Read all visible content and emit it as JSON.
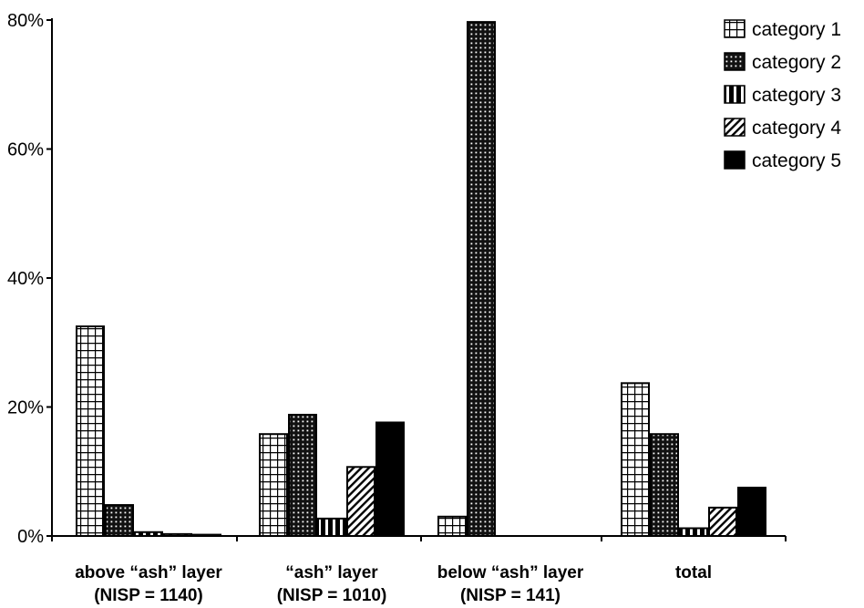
{
  "chart_data": {
    "type": "bar",
    "categories": [
      {
        "line1": "above “ash” layer",
        "line2": "(NISP = 1140)"
      },
      {
        "line1": "“ash” layer",
        "line2": "(NISP = 1010)"
      },
      {
        "line1": "below “ash” layer",
        "line2": "(NISP = 141)"
      },
      {
        "line1": "total",
        "line2": ""
      }
    ],
    "series": [
      {
        "name": "category 1",
        "pattern": "grid",
        "values": [
          32.5,
          15.8,
          3.0,
          23.7
        ]
      },
      {
        "name": "category 2",
        "pattern": "dots",
        "values": [
          4.8,
          18.8,
          79.7,
          15.8
        ]
      },
      {
        "name": "category 3",
        "pattern": "vstripes",
        "values": [
          0.6,
          2.7,
          0.0,
          1.2
        ]
      },
      {
        "name": "category 4",
        "pattern": "diagonal",
        "values": [
          0.3,
          10.7,
          0.0,
          4.4
        ]
      },
      {
        "name": "category 5",
        "pattern": "solid",
        "values": [
          0.2,
          17.6,
          0.0,
          7.5
        ]
      }
    ],
    "ylim": [
      0,
      80
    ],
    "yticks": [
      0,
      20,
      40,
      60,
      80
    ],
    "ytick_labels": [
      "0%",
      "20%",
      "40%",
      "60%",
      "80%"
    ],
    "title": "",
    "xlabel": "",
    "ylabel": "",
    "grid": false,
    "legend_position": "top-right",
    "colors": {
      "fill": "#000000",
      "background": "#ffffff"
    }
  }
}
